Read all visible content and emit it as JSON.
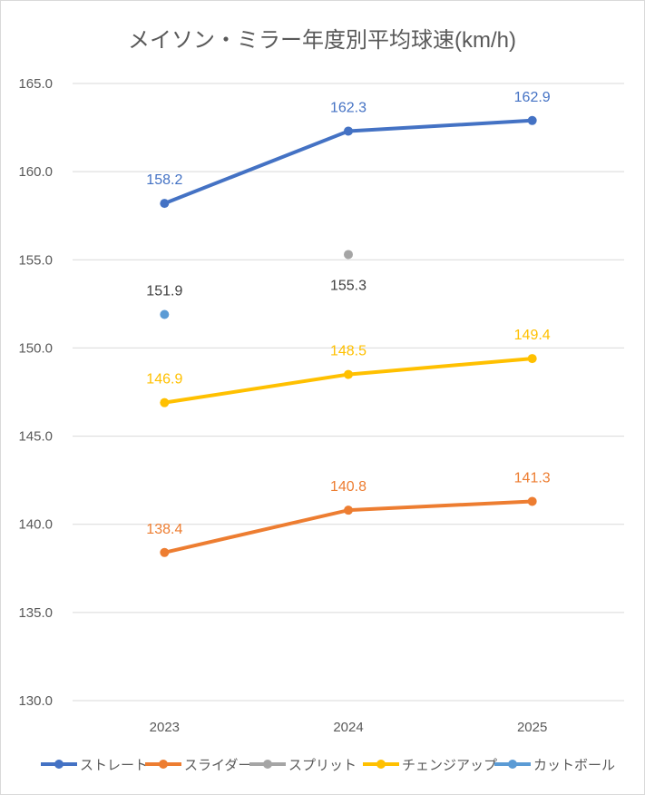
{
  "chart_data": {
    "type": "line",
    "title": "メイソン・ミラー年度別平均球速(km/h)",
    "xlabel": "",
    "ylabel": "",
    "categories": [
      "2023",
      "2024",
      "2025"
    ],
    "ylim": [
      130,
      165
    ],
    "yticks": [
      "130.0",
      "135.0",
      "140.0",
      "145.0",
      "150.0",
      "155.0",
      "160.0",
      "165.0"
    ],
    "grid": true,
    "legend_position": "bottom",
    "series": [
      {
        "name": "ストレート",
        "color": "#4472C4",
        "values": [
          158.2,
          162.3,
          162.9
        ],
        "labels": [
          "158.2",
          "162.3",
          "162.9"
        ],
        "label_pos": "above"
      },
      {
        "name": "スライダー",
        "color": "#ED7D31",
        "values": [
          138.4,
          140.8,
          141.3
        ],
        "labels": [
          "138.4",
          "140.8",
          "141.3"
        ],
        "label_pos": "above"
      },
      {
        "name": "スプリット",
        "color": "#A5A5A5",
        "values": [
          null,
          155.3,
          null
        ],
        "labels": [
          null,
          "155.3",
          null
        ],
        "label_pos": "below",
        "label_color": "#404040"
      },
      {
        "name": "チェンジアップ",
        "color": "#FFC000",
        "values": [
          146.9,
          148.5,
          149.4
        ],
        "labels": [
          "146.9",
          "148.5",
          "149.4"
        ],
        "label_pos": "above"
      },
      {
        "name": "カットボール",
        "color": "#5B9BD5",
        "values": [
          151.9,
          null,
          null
        ],
        "labels": [
          "151.9",
          null,
          null
        ],
        "label_pos": "above",
        "label_color": "#404040"
      }
    ]
  }
}
